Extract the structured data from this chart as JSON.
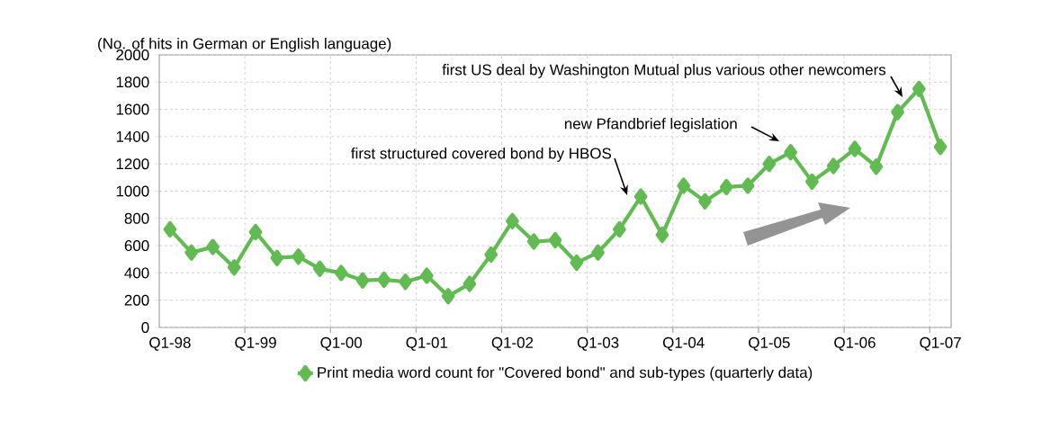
{
  "chart_data": {
    "type": "line",
    "ylabel": "(No. of hits in German or English language)",
    "categories": [
      "Q1-98",
      null,
      null,
      null,
      "Q1-99",
      null,
      null,
      null,
      "Q1-00",
      null,
      null,
      null,
      "Q1-01",
      null,
      null,
      null,
      "Q1-02",
      null,
      null,
      null,
      "Q1-03",
      null,
      null,
      null,
      "Q1-04",
      null,
      null,
      null,
      "Q1-05",
      null,
      null,
      null,
      "Q1-06",
      null,
      null,
      null,
      "Q1-07"
    ],
    "series": [
      {
        "name": "Print media word count for \"Covered bond\" and sub-types (quarterly data)",
        "color": "#62bb52",
        "values": [
          720,
          550,
          590,
          440,
          700,
          510,
          520,
          430,
          400,
          345,
          350,
          335,
          380,
          230,
          320,
          535,
          780,
          630,
          640,
          475,
          550,
          720,
          960,
          680,
          1040,
          925,
          1030,
          1040,
          1200,
          1285,
          1070,
          1185,
          1310,
          1180,
          1580,
          1750,
          1325
        ]
      }
    ],
    "ylim": [
      0,
      2000
    ],
    "yticks": [
      0,
      200,
      400,
      600,
      800,
      1000,
      1200,
      1400,
      1600,
      1800,
      2000
    ],
    "grid": true,
    "legend": "bottom",
    "marker": "diamond",
    "line_style": "solid",
    "annotations": [
      "first US deal by Washington Mutual plus various other newcomers",
      "new Pfandbrief legislation",
      "first structured covered bond by HBOS"
    ]
  }
}
